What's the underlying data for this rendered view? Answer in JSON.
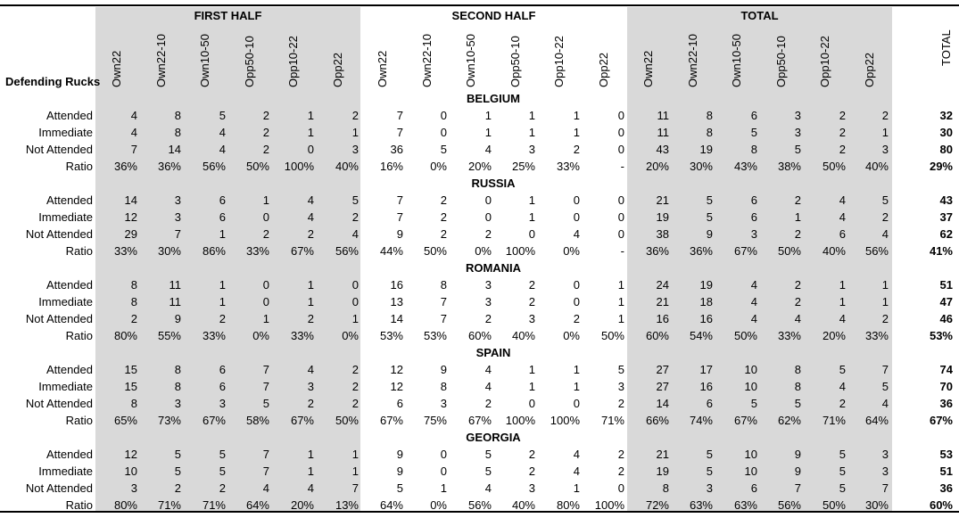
{
  "header": {
    "row_header": "Defending Rucks",
    "groups": [
      "FIRST HALF",
      "SECOND HALF",
      "TOTAL"
    ],
    "columns": [
      "Own22",
      "Own22-10",
      "Own10-50",
      "Opp50-10",
      "Opp10-22",
      "Opp22"
    ],
    "total_label": "TOTAL"
  },
  "teams": [
    {
      "name": "BELGIUM",
      "rows": [
        {
          "label": "Attended",
          "first": [
            "4",
            "8",
            "5",
            "2",
            "1",
            "2"
          ],
          "second": [
            "7",
            "0",
            "1",
            "1",
            "1",
            "0"
          ],
          "total": [
            "11",
            "8",
            "6",
            "3",
            "2",
            "2"
          ],
          "grand": "32"
        },
        {
          "label": "Immediate",
          "first": [
            "4",
            "8",
            "4",
            "2",
            "1",
            "1"
          ],
          "second": [
            "7",
            "0",
            "1",
            "1",
            "1",
            "0"
          ],
          "total": [
            "11",
            "8",
            "5",
            "3",
            "2",
            "1"
          ],
          "grand": "30"
        },
        {
          "label": "Not Attended",
          "first": [
            "7",
            "14",
            "4",
            "2",
            "0",
            "3"
          ],
          "second": [
            "36",
            "5",
            "4",
            "3",
            "2",
            "0"
          ],
          "total": [
            "43",
            "19",
            "8",
            "5",
            "2",
            "3"
          ],
          "grand": "80"
        },
        {
          "label": "Ratio",
          "first": [
            "36%",
            "36%",
            "56%",
            "50%",
            "100%",
            "40%"
          ],
          "second": [
            "16%",
            "0%",
            "20%",
            "25%",
            "33%",
            "-"
          ],
          "total": [
            "20%",
            "30%",
            "43%",
            "38%",
            "50%",
            "40%"
          ],
          "grand": "29%"
        }
      ]
    },
    {
      "name": "RUSSIA",
      "rows": [
        {
          "label": "Attended",
          "first": [
            "14",
            "3",
            "6",
            "1",
            "4",
            "5"
          ],
          "second": [
            "7",
            "2",
            "0",
            "1",
            "0",
            "0"
          ],
          "total": [
            "21",
            "5",
            "6",
            "2",
            "4",
            "5"
          ],
          "grand": "43"
        },
        {
          "label": "Immediate",
          "first": [
            "12",
            "3",
            "6",
            "0",
            "4",
            "2"
          ],
          "second": [
            "7",
            "2",
            "0",
            "1",
            "0",
            "0"
          ],
          "total": [
            "19",
            "5",
            "6",
            "1",
            "4",
            "2"
          ],
          "grand": "37"
        },
        {
          "label": "Not Attended",
          "first": [
            "29",
            "7",
            "1",
            "2",
            "2",
            "4"
          ],
          "second": [
            "9",
            "2",
            "2",
            "0",
            "4",
            "0"
          ],
          "total": [
            "38",
            "9",
            "3",
            "2",
            "6",
            "4"
          ],
          "grand": "62"
        },
        {
          "label": "Ratio",
          "first": [
            "33%",
            "30%",
            "86%",
            "33%",
            "67%",
            "56%"
          ],
          "second": [
            "44%",
            "50%",
            "0%",
            "100%",
            "0%",
            "-"
          ],
          "total": [
            "36%",
            "36%",
            "67%",
            "50%",
            "40%",
            "56%"
          ],
          "grand": "41%"
        }
      ]
    },
    {
      "name": "ROMANIA",
      "rows": [
        {
          "label": "Attended",
          "first": [
            "8",
            "11",
            "1",
            "0",
            "1",
            "0"
          ],
          "second": [
            "16",
            "8",
            "3",
            "2",
            "0",
            "1"
          ],
          "total": [
            "24",
            "19",
            "4",
            "2",
            "1",
            "1"
          ],
          "grand": "51"
        },
        {
          "label": "Immediate",
          "first": [
            "8",
            "11",
            "1",
            "0",
            "1",
            "0"
          ],
          "second": [
            "13",
            "7",
            "3",
            "2",
            "0",
            "1"
          ],
          "total": [
            "21",
            "18",
            "4",
            "2",
            "1",
            "1"
          ],
          "grand": "47"
        },
        {
          "label": "Not Attended",
          "first": [
            "2",
            "9",
            "2",
            "1",
            "2",
            "1"
          ],
          "second": [
            "14",
            "7",
            "2",
            "3",
            "2",
            "1"
          ],
          "total": [
            "16",
            "16",
            "4",
            "4",
            "4",
            "2"
          ],
          "grand": "46"
        },
        {
          "label": "Ratio",
          "first": [
            "80%",
            "55%",
            "33%",
            "0%",
            "33%",
            "0%"
          ],
          "second": [
            "53%",
            "53%",
            "60%",
            "40%",
            "0%",
            "50%"
          ],
          "total": [
            "60%",
            "54%",
            "50%",
            "33%",
            "20%",
            "33%"
          ],
          "grand": "53%"
        }
      ]
    },
    {
      "name": "SPAIN",
      "rows": [
        {
          "label": "Attended",
          "first": [
            "15",
            "8",
            "6",
            "7",
            "4",
            "2"
          ],
          "second": [
            "12",
            "9",
            "4",
            "1",
            "1",
            "5"
          ],
          "total": [
            "27",
            "17",
            "10",
            "8",
            "5",
            "7"
          ],
          "grand": "74"
        },
        {
          "label": "Immediate",
          "first": [
            "15",
            "8",
            "6",
            "7",
            "3",
            "2"
          ],
          "second": [
            "12",
            "8",
            "4",
            "1",
            "1",
            "3"
          ],
          "total": [
            "27",
            "16",
            "10",
            "8",
            "4",
            "5"
          ],
          "grand": "70"
        },
        {
          "label": "Not Attended",
          "first": [
            "8",
            "3",
            "3",
            "5",
            "2",
            "2"
          ],
          "second": [
            "6",
            "3",
            "2",
            "0",
            "0",
            "2"
          ],
          "total": [
            "14",
            "6",
            "5",
            "5",
            "2",
            "4"
          ],
          "grand": "36"
        },
        {
          "label": "Ratio",
          "first": [
            "65%",
            "73%",
            "67%",
            "58%",
            "67%",
            "50%"
          ],
          "second": [
            "67%",
            "75%",
            "67%",
            "100%",
            "100%",
            "71%"
          ],
          "total": [
            "66%",
            "74%",
            "67%",
            "62%",
            "71%",
            "64%"
          ],
          "grand": "67%"
        }
      ]
    },
    {
      "name": "GEORGIA",
      "rows": [
        {
          "label": "Attended",
          "first": [
            "12",
            "5",
            "5",
            "7",
            "1",
            "1"
          ],
          "second": [
            "9",
            "0",
            "5",
            "2",
            "4",
            "2"
          ],
          "total": [
            "21",
            "5",
            "10",
            "9",
            "5",
            "3"
          ],
          "grand": "53"
        },
        {
          "label": "Immediate",
          "first": [
            "10",
            "5",
            "5",
            "7",
            "1",
            "1"
          ],
          "second": [
            "9",
            "0",
            "5",
            "2",
            "4",
            "2"
          ],
          "total": [
            "19",
            "5",
            "10",
            "9",
            "5",
            "3"
          ],
          "grand": "51"
        },
        {
          "label": "Not Attended",
          "first": [
            "3",
            "2",
            "2",
            "4",
            "4",
            "7"
          ],
          "second": [
            "5",
            "1",
            "4",
            "3",
            "1",
            "0"
          ],
          "total": [
            "8",
            "3",
            "6",
            "7",
            "5",
            "7"
          ],
          "grand": "36"
        },
        {
          "label": "Ratio",
          "first": [
            "80%",
            "71%",
            "71%",
            "64%",
            "20%",
            "13%"
          ],
          "second": [
            "64%",
            "0%",
            "56%",
            "40%",
            "80%",
            "100%"
          ],
          "total": [
            "72%",
            "63%",
            "63%",
            "56%",
            "50%",
            "30%"
          ],
          "grand": "60%"
        }
      ]
    }
  ]
}
